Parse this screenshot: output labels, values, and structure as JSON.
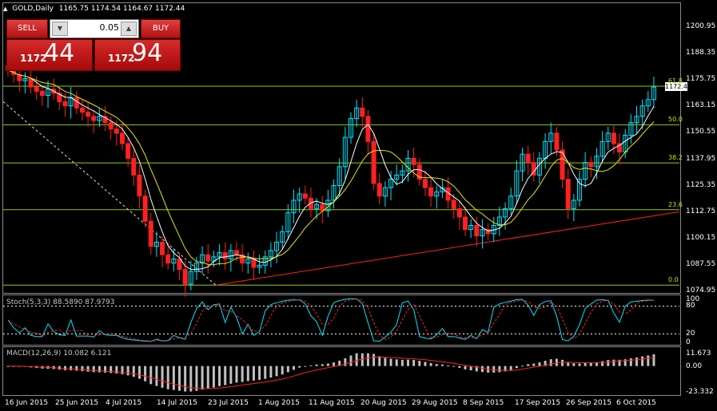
{
  "symbol": {
    "name": "GOLD,Daily",
    "ohlc": "1165.75 1174.54 1164.67 1172.44"
  },
  "trade_panel": {
    "sell_label": "SELL",
    "buy_label": "BUY",
    "lot": "0.05",
    "sell_small": "1172",
    "sell_big": "44",
    "buy_small": "1172",
    "buy_big": "94"
  },
  "current_price": "1172.44",
  "price_axis": [
    "1200.95",
    "1188.35",
    "1175.75",
    "1163.15",
    "1150.55",
    "1137.95",
    "1125.35",
    "1112.75",
    "1100.15",
    "1087.55",
    "1074.95"
  ],
  "fib_levels": [
    {
      "label": "61.8",
      "price": 1172.4
    },
    {
      "label": "50.0",
      "price": 1154.0
    },
    {
      "label": "38.2",
      "price": 1135.8
    },
    {
      "label": "23.6",
      "price": 1113.5
    },
    {
      "label": "0.0",
      "price": 1077.5
    }
  ],
  "stoch": {
    "label": "Stoch(5,3,3) 88.5890 87.9793",
    "levels": [
      "100",
      "80",
      "20",
      "0"
    ]
  },
  "macd": {
    "label": "MACD(12,26,9) 10.082 6.121",
    "levels": [
      "11.673",
      "0.00",
      "-23.332"
    ]
  },
  "dates": [
    "16 Jun 2015",
    "25 Jun 2015",
    "4 Jul 2015",
    "14 Jul 2015",
    "23 Jul 2015",
    "1 Aug 2015",
    "11 Aug 2015",
    "20 Aug 2015",
    "29 Aug 2015",
    "8 Sep 2015",
    "17 Sep 2015",
    "26 Sep 2015",
    "6 Oct 2015"
  ],
  "colors": {
    "bull": "#00e5ff",
    "bear": "#ff2020",
    "ma_fast": "#ffffff",
    "ma_slow": "#e8e800",
    "fib": "#99cc00",
    "trend": "#ff2020",
    "stoch_main": "#00e5ff",
    "stoch_sig": "#ff2020",
    "macd_hist": "#c0c0c0",
    "macd_sig": "#ff2020"
  },
  "chart_data": {
    "type": "candlestick",
    "closes": [
      1180,
      1178,
      1175,
      1176,
      1172,
      1170,
      1168,
      1171,
      1169,
      1165,
      1163,
      1167,
      1162,
      1160,
      1158,
      1156,
      1158,
      1155,
      1152,
      1150,
      1145,
      1138,
      1130,
      1120,
      1108,
      1096,
      1098,
      1092,
      1088,
      1090,
      1085,
      1078,
      1084,
      1088,
      1092,
      1089,
      1091,
      1093,
      1090,
      1094,
      1092,
      1088,
      1090,
      1086,
      1087,
      1091,
      1094,
      1098,
      1103,
      1112,
      1118,
      1121,
      1119,
      1114,
      1116,
      1113,
      1118,
      1125,
      1134,
      1148,
      1157,
      1162,
      1158,
      1146,
      1126,
      1120,
      1124,
      1128,
      1130,
      1132,
      1138,
      1135,
      1128,
      1124,
      1120,
      1122,
      1124,
      1118,
      1114,
      1110,
      1104,
      1106,
      1101,
      1104,
      1102,
      1106,
      1110,
      1114,
      1120,
      1132,
      1140,
      1136,
      1130,
      1138,
      1146,
      1150,
      1142,
      1128,
      1114,
      1118,
      1128,
      1136,
      1134,
      1139,
      1146,
      1150,
      1145,
      1141,
      1149,
      1155,
      1158,
      1163,
      1166,
      1172
    ],
    "price_range": [
      1074.95,
      1200.95
    ],
    "stoch_range": [
      0,
      100
    ],
    "macd_range": [
      -23.332,
      11.673
    ]
  }
}
